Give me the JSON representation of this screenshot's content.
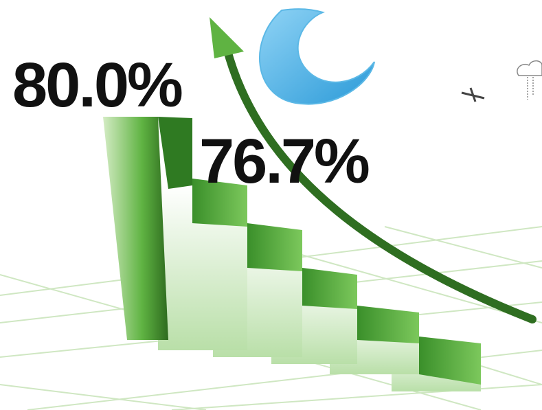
{
  "labels": {
    "top": "80.0%",
    "middle": "76.7%"
  }
}
